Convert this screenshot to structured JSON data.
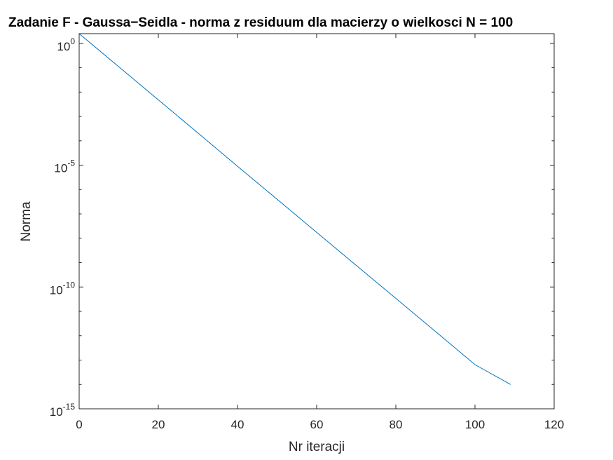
{
  "chart_data": {
    "type": "line",
    "title": "Zadanie F - Gaussa−Seidla - norma z residuum dla macierzy o wielkosci N = 100",
    "xlabel": "Nr iteracji",
    "ylabel": "Norma",
    "xlim": [
      0,
      120
    ],
    "ylim": [
      1e-15,
      2.5
    ],
    "yscale": "log",
    "grid": false,
    "x_ticks": [
      0,
      20,
      40,
      60,
      80,
      100,
      120
    ],
    "y_ticks": [
      {
        "base": "10",
        "exponent": "0",
        "value": 1
      },
      {
        "base": "10",
        "exponent": "-5",
        "value": 1e-05
      },
      {
        "base": "10",
        "exponent": "-10",
        "value": 1e-10
      },
      {
        "base": "10",
        "exponent": "-15",
        "value": 1e-15
      }
    ],
    "series": [
      {
        "color": "#0072BD",
        "x": [
          0,
          10,
          20,
          30,
          40,
          50,
          60,
          70,
          80,
          90,
          100,
          109
        ],
        "y": [
          2.5,
          0.11,
          0.0048,
          0.00021,
          9e-06,
          4e-07,
          1.75e-08,
          7.7e-10,
          3.4e-11,
          1.5e-12,
          6.5e-14,
          1e-14
        ]
      }
    ]
  }
}
